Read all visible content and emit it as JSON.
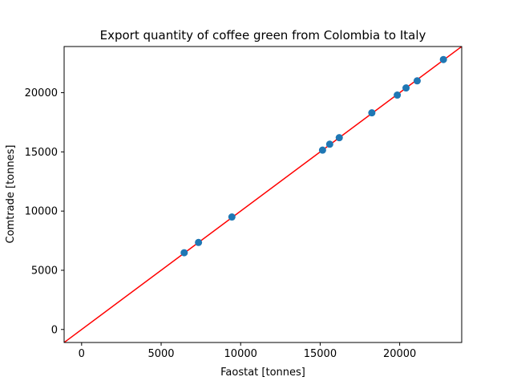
{
  "chart_data": {
    "type": "scatter",
    "title": "Export quantity of coffee green from Colombia to Italy",
    "xlabel": "Faostat [tonnes]",
    "ylabel": "Comtrade [tonnes]",
    "xlim": [
      -1100,
      23900
    ],
    "ylim": [
      -1100,
      23900
    ],
    "xticks": [
      0,
      5000,
      10000,
      15000,
      20000
    ],
    "yticks": [
      0,
      5000,
      10000,
      15000,
      20000
    ],
    "grid": false,
    "points": [
      {
        "x": 6450,
        "y": 6480
      },
      {
        "x": 7350,
        "y": 7350
      },
      {
        "x": 9450,
        "y": 9500
      },
      {
        "x": 15150,
        "y": 15150
      },
      {
        "x": 15600,
        "y": 15650
      },
      {
        "x": 16200,
        "y": 16200
      },
      {
        "x": 18250,
        "y": 18300
      },
      {
        "x": 19850,
        "y": 19800
      },
      {
        "x": 20400,
        "y": 20400
      },
      {
        "x": 21100,
        "y": 21000
      },
      {
        "x": 22750,
        "y": 22800
      }
    ],
    "reference_line": {
      "slope": 1,
      "intercept": 0,
      "color": "#ff0000"
    },
    "marker_color": "#1f77b4"
  }
}
